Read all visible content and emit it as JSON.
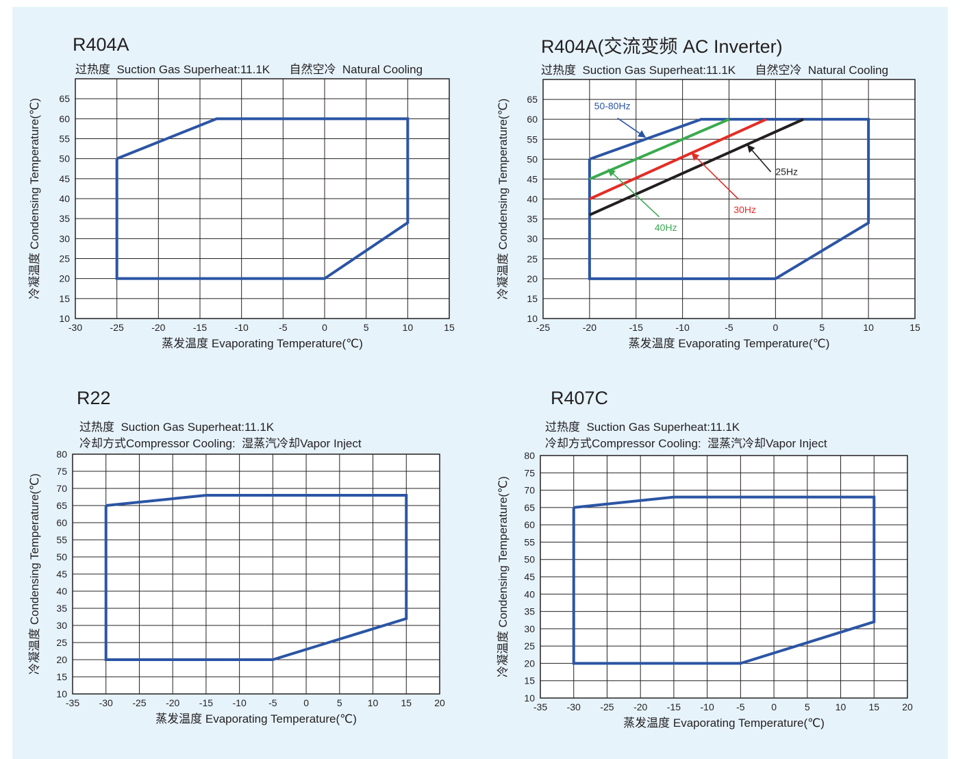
{
  "colors": {
    "background": "#e6f3fb",
    "envelope": "#2b55a4",
    "hz_40": "#3aaa4e",
    "hz_30": "#e32d26",
    "hz_25": "#231f20",
    "hz_50_80": "#2b55a4"
  },
  "chart_data": [
    {
      "type": "area",
      "title": "R404A",
      "subtitle_lines": [
        "过热度  Suction Gas Superheat:11.1K      自然空冷  Natural Cooling"
      ],
      "xlabel": "蒸发温度 Evaporating Temperature(℃)",
      "ylabel": "冷凝温度 Condensing Temperature(℃)",
      "xlim": [
        -30,
        15
      ],
      "ylim": [
        10,
        70
      ],
      "xticks": [
        -30,
        -25,
        -20,
        -15,
        -10,
        -5,
        0,
        5,
        10,
        15
      ],
      "yticks": [
        10,
        15,
        20,
        25,
        30,
        35,
        40,
        45,
        50,
        55,
        60,
        65
      ],
      "grid": true,
      "series": [
        {
          "x": [
            -25,
            -13,
            10,
            10,
            0,
            -25,
            -25
          ],
          "y": [
            50,
            60,
            60,
            34,
            20,
            20,
            50
          ]
        }
      ],
      "annotations": []
    },
    {
      "type": "line",
      "title": "R404A(交流变频 AC Inverter)",
      "subtitle_lines": [
        "过热度  Suction Gas Superheat:11.1K      自然空冷  Natural Cooling"
      ],
      "xlabel": "蒸发温度 Evaporating Temperature(℃)",
      "ylabel": "冷凝温度 Condensing Temperature(℃)",
      "xlim": [
        -25,
        15
      ],
      "ylim": [
        10,
        70
      ],
      "xticks": [
        -25,
        -20,
        -15,
        -10,
        -5,
        0,
        5,
        10,
        15
      ],
      "yticks": [
        10,
        15,
        20,
        25,
        30,
        35,
        40,
        45,
        50,
        55,
        60,
        65
      ],
      "grid": true,
      "series": [
        {
          "name": "50-80Hz",
          "x": [
            -20,
            -8,
            10,
            10,
            0,
            -20,
            -20
          ],
          "y": [
            50,
            60,
            60,
            34,
            20,
            20,
            50
          ]
        },
        {
          "name": "40Hz",
          "x": [
            -20,
            -5
          ],
          "y": [
            45,
            60
          ]
        },
        {
          "name": "30Hz",
          "x": [
            -20,
            -1
          ],
          "y": [
            40,
            60
          ]
        },
        {
          "name": "25Hz",
          "x": [
            -20,
            3
          ],
          "y": [
            36,
            60
          ]
        }
      ],
      "annotations": [
        {
          "text": "50-80Hz",
          "color_key": "hz_50_80",
          "x": -19.5,
          "y": 62.5,
          "arrow_from": [
            -17,
            60.3
          ],
          "arrow_to": [
            -14,
            55.5
          ]
        },
        {
          "text": "40Hz",
          "color_key": "hz_40",
          "x": -13,
          "y": 32,
          "arrow_from": [
            -12.5,
            35.5
          ],
          "arrow_to": [
            -18,
            47.5
          ]
        },
        {
          "text": "30Hz",
          "color_key": "hz_30",
          "x": -4.5,
          "y": 36.5,
          "arrow_from": [
            -4,
            40
          ],
          "arrow_to": [
            -9,
            51.5
          ]
        },
        {
          "text": "25Hz",
          "color_key": "hz_25",
          "x": 0,
          "y": 46,
          "arrow_from": [
            -0.5,
            46.8
          ],
          "arrow_to": [
            -3,
            53.5
          ]
        }
      ]
    },
    {
      "type": "area",
      "title": "R22",
      "subtitle_lines": [
        "过热度  Suction Gas Superheat:11.1K",
        "冷却方式Compressor Cooling:  湿蒸汽冷却Vapor Inject"
      ],
      "xlabel": "蒸发温度 Evaporating Temperature(℃)",
      "ylabel": "冷凝温度 Condensing Temperature(℃)",
      "xlim": [
        -35,
        20
      ],
      "ylim": [
        10,
        80
      ],
      "xticks": [
        -35,
        -30,
        -25,
        -20,
        -15,
        -10,
        -5,
        0,
        5,
        10,
        15,
        20
      ],
      "yticks": [
        10,
        15,
        20,
        25,
        30,
        35,
        40,
        45,
        50,
        55,
        60,
        65,
        70,
        75,
        80
      ],
      "grid": true,
      "series": [
        {
          "x": [
            -30,
            -15,
            15,
            15,
            -5,
            -30,
            -30
          ],
          "y": [
            65,
            68,
            68,
            32,
            20,
            20,
            65
          ]
        }
      ],
      "annotations": []
    },
    {
      "type": "area",
      "title": "R407C",
      "subtitle_lines": [
        "过热度  Suction Gas Superheat:11.1K",
        "冷却方式Compressor Cooling:  湿蒸汽冷却Vapor Inject"
      ],
      "xlabel": "蒸发温度 Evaporating Temperature(℃)",
      "ylabel": "冷凝温度 Condensing Temperature(℃)",
      "xlim": [
        -35,
        20
      ],
      "ylim": [
        10,
        80
      ],
      "xticks": [
        -35,
        -30,
        -25,
        -20,
        -15,
        -10,
        -5,
        0,
        5,
        10,
        15,
        20
      ],
      "yticks": [
        10,
        15,
        20,
        25,
        30,
        35,
        40,
        45,
        50,
        55,
        60,
        65,
        70,
        75,
        80
      ],
      "grid": true,
      "series": [
        {
          "x": [
            -30,
            -15,
            15,
            15,
            -5,
            -30,
            -30
          ],
          "y": [
            65,
            68,
            68,
            32,
            20,
            20,
            65
          ]
        }
      ],
      "annotations": []
    }
  ]
}
